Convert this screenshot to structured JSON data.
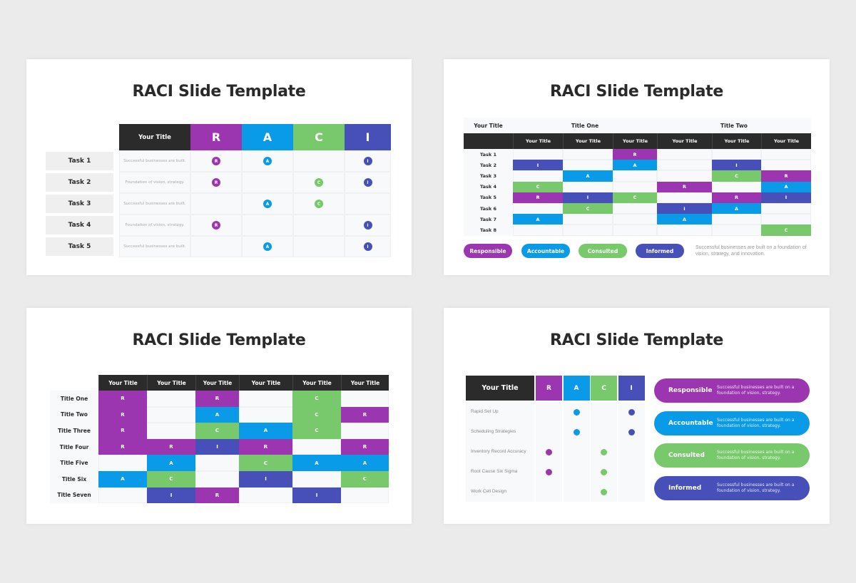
{
  "colors": {
    "R": "#9c36b0",
    "A": "#0a9be8",
    "C": "#78c86c",
    "I": "#4650b8",
    "header_dark": "#2b2b2b"
  },
  "slide1": {
    "title": "RACI Slide Template",
    "header": {
      "title": "Your Title",
      "R": "R",
      "A": "A",
      "C": "C",
      "I": "I"
    },
    "rows": [
      {
        "task": "Task 1",
        "desc": "Successful businesses are built.",
        "R": "R",
        "A": "A",
        "C": "",
        "I": "I"
      },
      {
        "task": "Task 2",
        "desc": "Foundation of vision, strategy.",
        "R": "R",
        "A": "",
        "C": "C",
        "I": "I"
      },
      {
        "task": "Task 3",
        "desc": "Successful businesses are built.",
        "R": "",
        "A": "A",
        "C": "C",
        "I": ""
      },
      {
        "task": "Task 4",
        "desc": "Foundation of vision, strategy.",
        "R": "R",
        "A": "",
        "C": "",
        "I": "I"
      },
      {
        "task": "Task 5",
        "desc": "Successful businesses are built.",
        "R": "",
        "A": "A",
        "C": "",
        "I": "I"
      }
    ]
  },
  "slide2": {
    "title": "RACI Slide Template",
    "corner_title": "Your Title",
    "group_titles": [
      "Title One",
      "Title Two"
    ],
    "columns": [
      "Your Title",
      "Your Title",
      "Your Title",
      "Your Title",
      "Your Title",
      "Your Title"
    ],
    "rows": [
      {
        "task": "Task 1",
        "cells": [
          "",
          "",
          "R",
          "",
          "",
          ""
        ]
      },
      {
        "task": "Task 2",
        "cells": [
          "I",
          "",
          "A",
          "",
          "I",
          ""
        ]
      },
      {
        "task": "Task 3",
        "cells": [
          "",
          "A",
          "",
          "",
          "C",
          "R"
        ]
      },
      {
        "task": "Task 4",
        "cells": [
          "C",
          "",
          "",
          "R",
          "",
          "A"
        ]
      },
      {
        "task": "Task 5",
        "cells": [
          "R",
          "I",
          "C",
          "",
          "R",
          "I"
        ]
      },
      {
        "task": "Task 6",
        "cells": [
          "",
          "C",
          "",
          "I",
          "A",
          ""
        ]
      },
      {
        "task": "Task 7",
        "cells": [
          "A",
          "",
          "",
          "A",
          "",
          ""
        ]
      },
      {
        "task": "Task 8",
        "cells": [
          "",
          "",
          "",
          "",
          "",
          "C"
        ]
      }
    ],
    "legend": [
      {
        "key": "R",
        "label": "Responsible"
      },
      {
        "key": "A",
        "label": "Accountable"
      },
      {
        "key": "C",
        "label": "Consulted"
      },
      {
        "key": "I",
        "label": "Informed"
      }
    ],
    "legend_note": "Successful businesses are built on a foundation of vision, strategy, and innovation."
  },
  "slide3": {
    "title": "RACI Slide Template",
    "columns": [
      "Your Title",
      "Your Title",
      "Your Title",
      "Your Title",
      "Your Title",
      "Your Title"
    ],
    "rows": [
      {
        "label": "Title One",
        "cells": [
          "R",
          "",
          "R",
          "",
          "C",
          ""
        ]
      },
      {
        "label": "Title Two",
        "cells": [
          "R",
          "",
          "A",
          "",
          "C",
          "R"
        ]
      },
      {
        "label": "Title Three",
        "cells": [
          "R",
          "",
          "C",
          "A",
          "C",
          ""
        ]
      },
      {
        "label": "Title Four",
        "cells": [
          "R",
          "R",
          "I",
          "R",
          "",
          "R"
        ]
      },
      {
        "label": "Title Five",
        "cells": [
          "",
          "A",
          "",
          "C",
          "A",
          "A"
        ]
      },
      {
        "label": "Title Six",
        "cells": [
          "A",
          "C",
          "",
          "I",
          "",
          "C"
        ]
      },
      {
        "label": "Title Seven",
        "cells": [
          "",
          "I",
          "R",
          "",
          "I",
          ""
        ]
      }
    ]
  },
  "slide4": {
    "title": "RACI Slide Template",
    "header": {
      "title": "Your Title",
      "R": "R",
      "A": "A",
      "C": "C",
      "I": "I"
    },
    "rows": [
      {
        "label": "Rapid Set Up",
        "R": false,
        "A": true,
        "C": false,
        "I": true
      },
      {
        "label": "Scheduling Strategies",
        "R": false,
        "A": true,
        "C": false,
        "I": true
      },
      {
        "label": "Inventory Record Accuracy",
        "R": true,
        "A": false,
        "C": true,
        "I": false
      },
      {
        "label": "Root Cause Six Sigma",
        "R": true,
        "A": false,
        "C": true,
        "I": false
      },
      {
        "label": "Work Cell Design",
        "R": false,
        "A": false,
        "C": true,
        "I": false
      }
    ],
    "legend": [
      {
        "key": "R",
        "label": "Responsible",
        "desc": "Successful businesses are built on a foundation of vision, strategy."
      },
      {
        "key": "A",
        "label": "Accountable",
        "desc": "Successful businesses are built on a foundation of vision, strategy."
      },
      {
        "key": "C",
        "label": "Consulted",
        "desc": "Successful businesses are built on a foundation of vision, strategy."
      },
      {
        "key": "I",
        "label": "Informed",
        "desc": "Successful businesses are built on a foundation of vision, strategy."
      }
    ]
  }
}
